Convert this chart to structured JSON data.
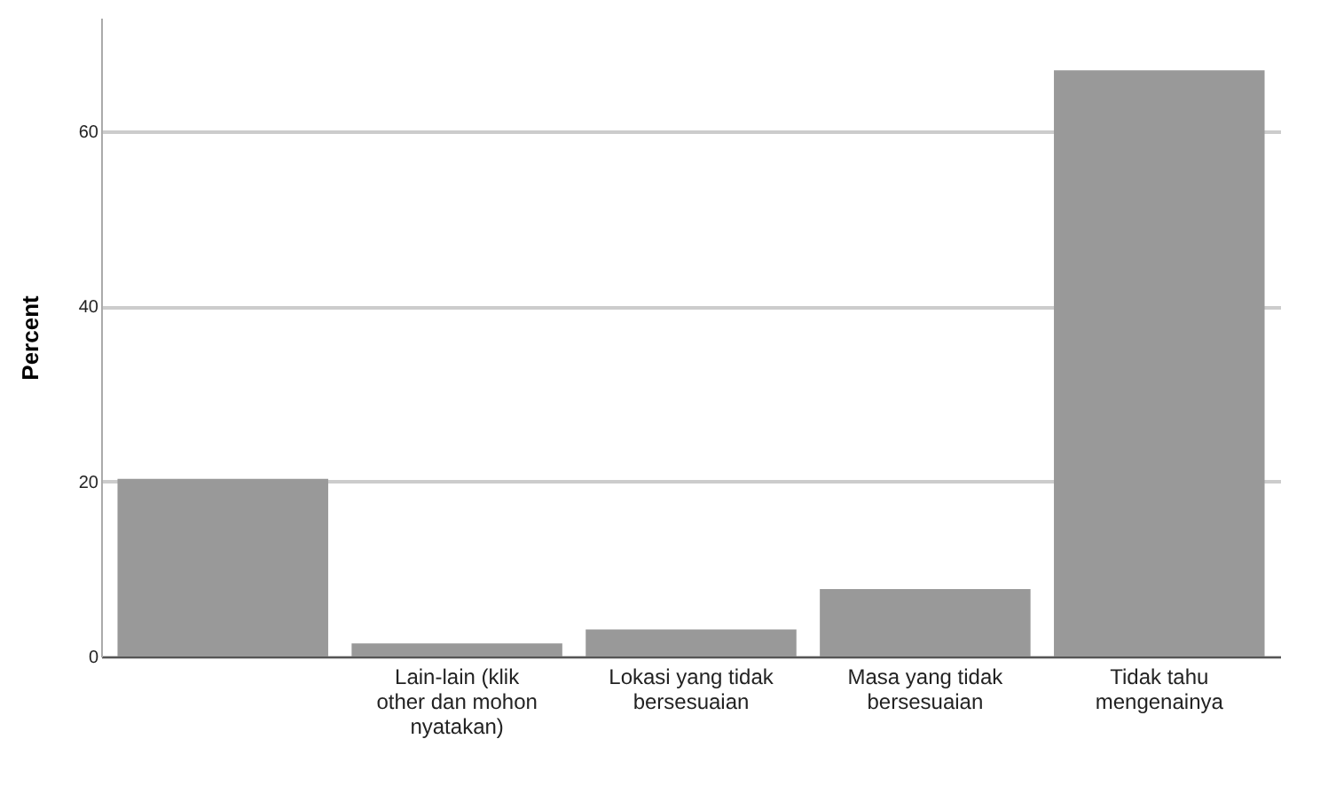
{
  "chart_data": {
    "type": "bar",
    "ylabel": "Percent",
    "categories": [
      null,
      "Lain-lain (klik other dan mohon nyatakan)",
      "Lokasi yang tidak bersesuaian",
      "Masa yang tidak bersesuaian",
      "Tidak tahu mengenainya"
    ],
    "values": [
      20.3,
      1.5,
      3.1,
      7.7,
      67.0
    ],
    "color": "#999999",
    "ylim": [
      0,
      73
    ],
    "yticks": [
      0,
      20,
      40,
      60
    ],
    "grid": "y"
  }
}
